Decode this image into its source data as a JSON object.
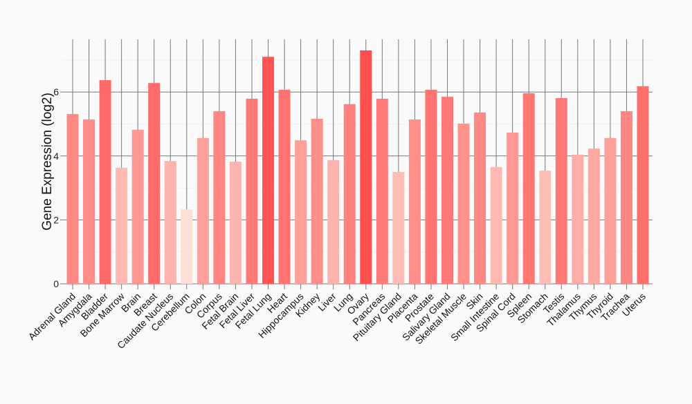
{
  "chart_data": {
    "type": "bar",
    "title": "",
    "xlabel": "",
    "ylabel": "Gene Expression (log2)",
    "ylim": [
      0,
      7.65
    ],
    "yticks": [
      0,
      2,
      4,
      6
    ],
    "grid": true,
    "categories": [
      "Adrenal Gland",
      "Amygdala",
      "Bladder",
      "Bone Marrow",
      "Brain",
      "Breast",
      "Caudate Nucleus",
      "Cerebellum",
      "Colon",
      "Corpus",
      "Fetal Brain",
      "Fetal Liver",
      "Fetal Lung",
      "Heart",
      "Hippocampus",
      "Kidney",
      "Liver",
      "Lung",
      "Ovary",
      "Pancreas",
      "Pituitary Gland",
      "Placenta",
      "Prostate",
      "Salivary Gland",
      "Skeletal Muscle",
      "Skin",
      "Small Intestine",
      "Spinal Cord",
      "Spleen",
      "Stomach",
      "Testis",
      "Thalamus",
      "Thymus",
      "Thyroid",
      "Trachea",
      "Uterus"
    ],
    "values": [
      5.31,
      5.14,
      6.37,
      3.63,
      4.82,
      6.28,
      3.84,
      2.33,
      4.56,
      5.4,
      3.82,
      5.79,
      7.1,
      6.07,
      4.49,
      5.16,
      3.87,
      5.62,
      7.3,
      5.79,
      3.5,
      5.14,
      6.07,
      5.85,
      5.01,
      5.36,
      3.65,
      4.73,
      5.96,
      3.54,
      5.81,
      4.04,
      4.23,
      4.56,
      5.4,
      6.18
    ],
    "color_low": "#fee0d6",
    "color_high": "#ff4f4f"
  }
}
